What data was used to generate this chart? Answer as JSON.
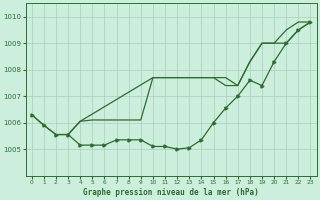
{
  "title": "Graphe pression niveau de la mer (hPa)",
  "background_color": "#cceedd",
  "grid_color": "#aaccbb",
  "line_color": "#2d6e2d",
  "xlim": [
    -0.5,
    23.5
  ],
  "ylim": [
    1004.0,
    1010.5
  ],
  "yticks": [
    1005,
    1006,
    1007,
    1008,
    1009,
    1010
  ],
  "xticks": [
    0,
    1,
    2,
    3,
    4,
    5,
    6,
    7,
    8,
    9,
    10,
    11,
    12,
    13,
    14,
    15,
    16,
    17,
    18,
    19,
    20,
    21,
    22,
    23
  ],
  "series1_x": [
    0,
    1,
    2,
    3,
    4,
    5,
    6,
    7,
    8,
    9,
    10,
    11,
    12,
    13,
    14,
    15,
    16,
    17,
    18,
    19,
    20,
    21,
    22,
    23
  ],
  "series1_y": [
    1006.3,
    1005.9,
    1005.55,
    1005.55,
    1005.15,
    1005.15,
    1005.15,
    1005.35,
    1005.35,
    1005.35,
    1005.1,
    1005.1,
    1005.0,
    1005.05,
    1005.35,
    1006.0,
    1006.55,
    1007.0,
    1007.6,
    1007.4,
    1008.3,
    1009.0,
    1009.5,
    1009.8
  ],
  "series2_x": [
    0,
    1,
    2,
    3,
    4,
    10,
    15,
    16,
    17,
    18,
    19,
    20,
    21,
    22,
    23
  ],
  "series2_y": [
    1006.3,
    1005.9,
    1005.55,
    1005.55,
    1006.05,
    1007.7,
    1007.7,
    1007.7,
    1007.4,
    1008.3,
    1009.0,
    1009.0,
    1009.0,
    1009.5,
    1009.8
  ],
  "series3_x": [
    3,
    4,
    5,
    6,
    7,
    8,
    9,
    10,
    15,
    16,
    17,
    18,
    19,
    20,
    21,
    22,
    23
  ],
  "series3_y": [
    1005.55,
    1006.05,
    1006.1,
    1006.1,
    1006.1,
    1006.1,
    1006.1,
    1007.7,
    1007.7,
    1007.4,
    1007.4,
    1008.3,
    1009.0,
    1009.0,
    1009.5,
    1009.8,
    1009.8
  ]
}
